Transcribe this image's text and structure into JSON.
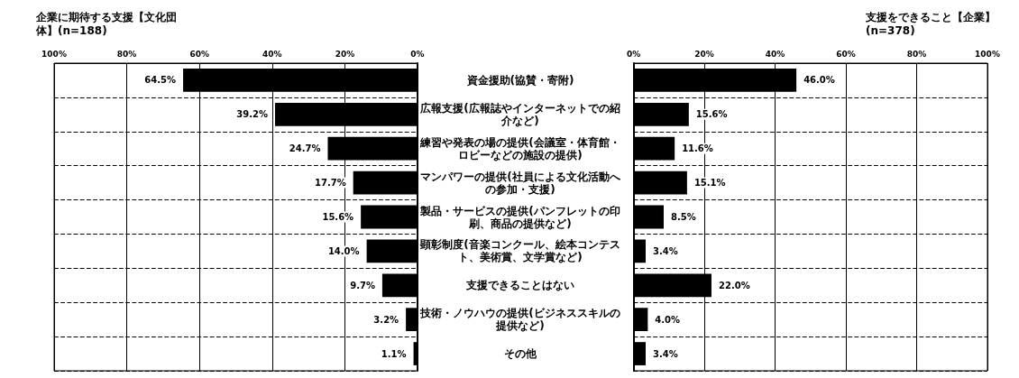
{
  "chart_data": [
    {
      "type": "bar",
      "orientation": "horizontal",
      "title": "企業に期待する支援【文化団体】(n=188)",
      "categories": [
        "資金援助(協賛・寄附)",
        "広報支援(広報誌やインターネットでの紹介など)",
        "練習や発表の場の提供(会議室・体育館・ロビーなどの施設の提供)",
        "マンパワーの提供(社員による文化活動への参加・支援)",
        "製品・サービスの提供(パンフレットの印刷、商品の提供など)",
        "顕彰制度(音楽コンクール、絵本コンテスト、美術賞、文学賞など)",
        "支援できることはない",
        "技術・ノウハウの提供(ビジネススキルの提供など)",
        "その他"
      ],
      "values": [
        64.5,
        39.2,
        24.7,
        17.7,
        15.6,
        14.0,
        9.7,
        3.2,
        1.1
      ],
      "value_labels": [
        "64.5%",
        "39.2%",
        "24.7%",
        "17.7%",
        "15.6%",
        "14.0%",
        "9.7%",
        "3.2%",
        "1.1%"
      ],
      "color": "#000000",
      "xlim": [
        100,
        0
      ],
      "xticks": [
        {
          "value": 100,
          "label": "100%"
        },
        {
          "value": 80,
          "label": "80%"
        },
        {
          "value": 60,
          "label": "60%"
        },
        {
          "value": 40,
          "label": "40%"
        },
        {
          "value": 20,
          "label": "20%"
        },
        {
          "value": 0,
          "label": "0%"
        }
      ],
      "grid": true
    },
    {
      "type": "bar",
      "orientation": "horizontal",
      "title": "支援をできること【企業】(n=378)",
      "categories": [
        "資金援助(協賛・寄附)",
        "広報支援(広報誌やインターネットでの紹介など)",
        "練習や発表の場の提供(会議室・体育館・ロビーなどの施設の提供)",
        "マンパワーの提供(社員による文化活動への参加・支援)",
        "製品・サービスの提供(パンフレットの印刷、商品の提供など)",
        "顕彰制度(音楽コンクール、絵本コンテスト、美術賞、文学賞など)",
        "支援できることはない",
        "技術・ノウハウの提供(ビジネススキルの提供など)",
        "その他"
      ],
      "values": [
        46.0,
        15.6,
        11.6,
        15.1,
        8.5,
        3.4,
        22.0,
        4.0,
        3.4
      ],
      "value_labels": [
        "46.0%",
        "15.6%",
        "11.6%",
        "15.1%",
        "8.5%",
        "3.4%",
        "22.0%",
        "4.0%",
        "3.4%"
      ],
      "color": "#000000",
      "xlim": [
        0,
        100
      ],
      "xticks": [
        {
          "value": 0,
          "label": "0%"
        },
        {
          "value": 20,
          "label": "20%"
        },
        {
          "value": 40,
          "label": "40%"
        },
        {
          "value": 60,
          "label": "60%"
        },
        {
          "value": 80,
          "label": "80%"
        },
        {
          "value": 100,
          "label": "100%"
        }
      ],
      "grid": true,
      "tick_labels": "x"
    }
  ]
}
